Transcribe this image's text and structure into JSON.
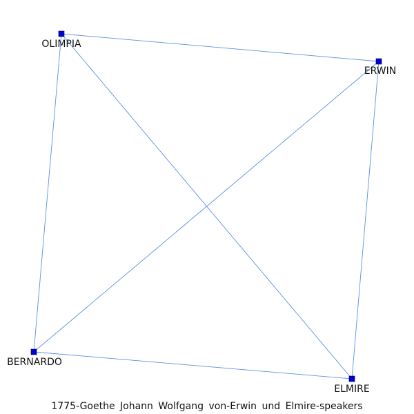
{
  "caption": "1775-Goethe_Johann_Wolfgang_von-Erwin_und_Elmire-speakers",
  "colors": {
    "edge": "#5b8fe6",
    "node": "#0000dd",
    "label": "#111111"
  },
  "network": {
    "nodes": [
      {
        "id": "OLIMPIA",
        "label": "OLIMPIA"
      },
      {
        "id": "ERWIN",
        "label": "ERWIN"
      },
      {
        "id": "BERNARDO",
        "label": "BERNARDO"
      },
      {
        "id": "ELMIRE",
        "label": "ELMIRE"
      }
    ],
    "edges": [
      {
        "source": "OLIMPIA",
        "target": "ERWIN"
      },
      {
        "source": "OLIMPIA",
        "target": "BERNARDO"
      },
      {
        "source": "OLIMPIA",
        "target": "ELMIRE"
      },
      {
        "source": "ERWIN",
        "target": "BERNARDO"
      },
      {
        "source": "ERWIN",
        "target": "ELMIRE"
      },
      {
        "source": "BERNARDO",
        "target": "ELMIRE"
      }
    ]
  }
}
